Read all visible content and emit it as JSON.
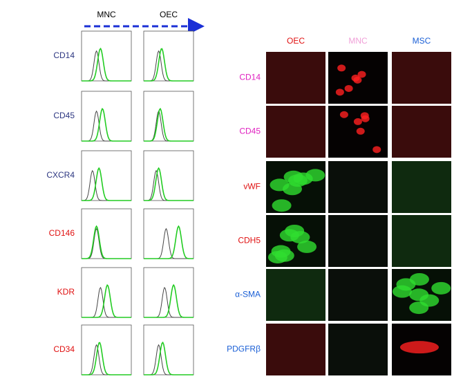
{
  "flow": {
    "columns": [
      "MNC",
      "OEC"
    ],
    "rows": [
      "CD14",
      "CD45",
      "CXCR4",
      "CD146",
      "KDR",
      "CD34"
    ]
  },
  "microscopy": {
    "columns": [
      "OEC",
      "MNC",
      "MSC"
    ],
    "rows": [
      "CD14",
      "CD45",
      "vWF",
      "CDH5",
      "α-SMA",
      "PDGFRβ"
    ]
  }
}
